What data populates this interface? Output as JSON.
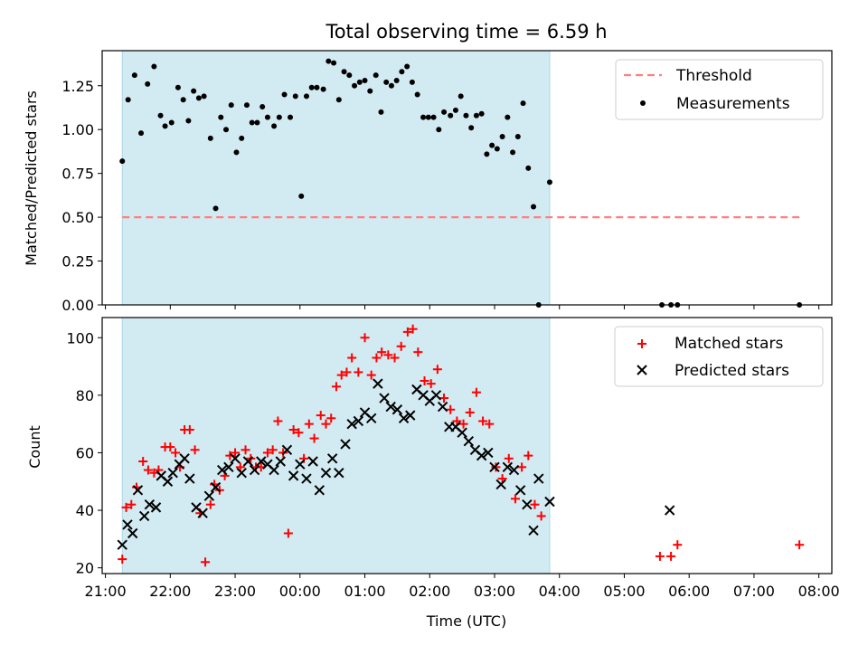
{
  "chart_data": {
    "title": "Total observing time = 6.59 h",
    "xlabel": "Time (UTC)",
    "x_ticks": [
      "21:00",
      "22:00",
      "23:00",
      "00:00",
      "01:00",
      "02:00",
      "03:00",
      "04:00",
      "05:00",
      "06:00",
      "07:00",
      "08:00"
    ],
    "x_range_hours": [
      20.95,
      32.2
    ],
    "shaded_interval_hours": [
      21.26,
      27.85
    ],
    "shade_color": "#add8e6",
    "panels": [
      {
        "type": "scatter",
        "ylabel": "Matched/Predicted stars",
        "ylim": [
          0,
          1.45
        ],
        "y_ticks": [
          "0.00",
          "0.25",
          "0.50",
          "0.75",
          "1.00",
          "1.25"
        ],
        "threshold": {
          "name": "Threshold",
          "value": 0.5,
          "x_start": 21.26,
          "x_end": 31.7,
          "color": "#ff7f7f"
        },
        "series": [
          {
            "name": "Measurements",
            "color": "#000000",
            "x": [
              21.26,
              21.35,
              21.45,
              21.55,
              21.65,
              21.75,
              21.85,
              21.92,
              22.02,
              22.12,
              22.2,
              22.28,
              22.36,
              22.44,
              22.52,
              22.62,
              22.7,
              22.78,
              22.86,
              22.94,
              23.02,
              23.1,
              23.18,
              23.26,
              23.34,
              23.42,
              23.5,
              23.6,
              23.68,
              23.76,
              23.85,
              23.93,
              24.02,
              24.1,
              24.18,
              24.26,
              24.36,
              24.44,
              24.52,
              24.6,
              24.68,
              24.76,
              24.84,
              24.92,
              25.0,
              25.08,
              25.17,
              25.25,
              25.33,
              25.41,
              25.49,
              25.57,
              25.65,
              25.73,
              25.81,
              25.9,
              25.98,
              26.06,
              26.14,
              26.22,
              26.32,
              26.4,
              26.48,
              26.56,
              26.64,
              26.72,
              26.8,
              26.88,
              26.96,
              27.04,
              27.12,
              27.2,
              27.28,
              27.36,
              27.44,
              27.52,
              27.6,
              27.68,
              27.85,
              29.58,
              29.72,
              29.82,
              31.7
            ],
            "y": [
              0.82,
              1.17,
              1.31,
              0.98,
              1.26,
              1.36,
              1.08,
              1.02,
              1.04,
              1.24,
              1.17,
              1.05,
              1.22,
              1.18,
              1.19,
              0.95,
              0.55,
              1.07,
              1.0,
              1.14,
              0.87,
              0.95,
              1.14,
              1.04,
              1.04,
              1.13,
              1.07,
              1.02,
              1.07,
              1.2,
              1.07,
              1.19,
              0.62,
              1.19,
              1.24,
              1.24,
              1.23,
              1.39,
              1.38,
              1.17,
              1.33,
              1.31,
              1.25,
              1.27,
              1.28,
              1.22,
              1.31,
              1.1,
              1.27,
              1.25,
              1.28,
              1.33,
              1.36,
              1.27,
              1.2,
              1.07,
              1.07,
              1.07,
              1.0,
              1.1,
              1.08,
              1.11,
              1.19,
              1.08,
              1.01,
              1.08,
              1.09,
              0.86,
              0.91,
              0.89,
              0.96,
              1.07,
              0.87,
              0.96,
              1.15,
              0.78,
              0.56,
              0.0,
              0.7,
              0.0,
              0.0,
              0.0,
              0.0
            ]
          }
        ]
      },
      {
        "type": "scatter",
        "ylabel": "Count",
        "ylim": [
          18,
          107
        ],
        "y_ticks": [
          "20",
          "40",
          "60",
          "80",
          "100"
        ],
        "series": [
          {
            "name": "Matched stars",
            "marker": "+",
            "color": "#ff0000",
            "x": [
              21.26,
              21.32,
              21.4,
              21.48,
              21.58,
              21.66,
              21.75,
              21.82,
              21.92,
              22.0,
              22.08,
              22.15,
              22.22,
              22.3,
              22.38,
              22.46,
              22.54,
              22.62,
              22.68,
              22.76,
              22.84,
              22.92,
              23.0,
              23.08,
              23.16,
              23.24,
              23.32,
              23.4,
              23.5,
              23.58,
              23.66,
              23.74,
              23.82,
              23.9,
              23.98,
              24.06,
              24.14,
              24.22,
              24.32,
              24.4,
              24.48,
              24.56,
              24.64,
              24.72,
              24.8,
              24.9,
              25.0,
              25.1,
              25.18,
              25.26,
              25.36,
              25.46,
              25.56,
              25.66,
              25.74,
              25.82,
              25.92,
              26.02,
              26.12,
              26.22,
              26.32,
              26.42,
              26.52,
              26.62,
              26.72,
              26.82,
              26.92,
              27.02,
              27.12,
              27.22,
              27.32,
              27.42,
              27.52,
              27.62,
              27.72,
              29.55,
              29.72,
              29.82,
              31.7
            ],
            "y": [
              23,
              41,
              42,
              48,
              57,
              54,
              53,
              54,
              62,
              62,
              60,
              55,
              68,
              68,
              61,
              39,
              22,
              42,
              49,
              47,
              52,
              59,
              60,
              55,
              61,
              58,
              55,
              55,
              60,
              61,
              71,
              60,
              32,
              68,
              67,
              58,
              70,
              65,
              73,
              70,
              72,
              83,
              87,
              88,
              93,
              88,
              100,
              87,
              93,
              95,
              94,
              93,
              97,
              102,
              103,
              95,
              85,
              84,
              89,
              79,
              75,
              71,
              70,
              74,
              81,
              71,
              70,
              55,
              51,
              58,
              44,
              55,
              59,
              42,
              38,
              24,
              24,
              28,
              28
            ]
          },
          {
            "name": "Predicted stars",
            "marker": "x",
            "color": "#000000",
            "x": [
              21.26,
              21.34,
              21.42,
              21.5,
              21.6,
              21.68,
              21.78,
              21.86,
              21.96,
              22.04,
              22.14,
              22.22,
              22.3,
              22.4,
              22.5,
              22.6,
              22.7,
              22.8,
              22.9,
              23.0,
              23.1,
              23.2,
              23.3,
              23.4,
              23.5,
              23.6,
              23.7,
              23.8,
              23.9,
              24.0,
              24.1,
              24.2,
              24.3,
              24.4,
              24.5,
              24.6,
              24.7,
              24.8,
              24.9,
              25.0,
              25.1,
              25.2,
              25.3,
              25.4,
              25.5,
              25.6,
              25.7,
              25.8,
              25.9,
              26.0,
              26.1,
              26.2,
              26.3,
              26.4,
              26.5,
              26.6,
              26.7,
              26.8,
              26.9,
              27.0,
              27.1,
              27.2,
              27.3,
              27.4,
              27.5,
              27.6,
              27.68,
              27.85,
              29.7
            ],
            "y": [
              28,
              35,
              32,
              47,
              38,
              42,
              41,
              52,
              50,
              53,
              56,
              58,
              51,
              41,
              39,
              45,
              48,
              54,
              55,
              58,
              53,
              57,
              54,
              57,
              56,
              54,
              57,
              61,
              52,
              56,
              51,
              57,
              47,
              53,
              58,
              53,
              63,
              70,
              71,
              74,
              72,
              84,
              79,
              76,
              75,
              72,
              73,
              82,
              80,
              78,
              80,
              76,
              69,
              69,
              67,
              64,
              61,
              59,
              60,
              55,
              49,
              55,
              54,
              47,
              42,
              33,
              51,
              43,
              40
            ]
          }
        ]
      }
    ]
  }
}
